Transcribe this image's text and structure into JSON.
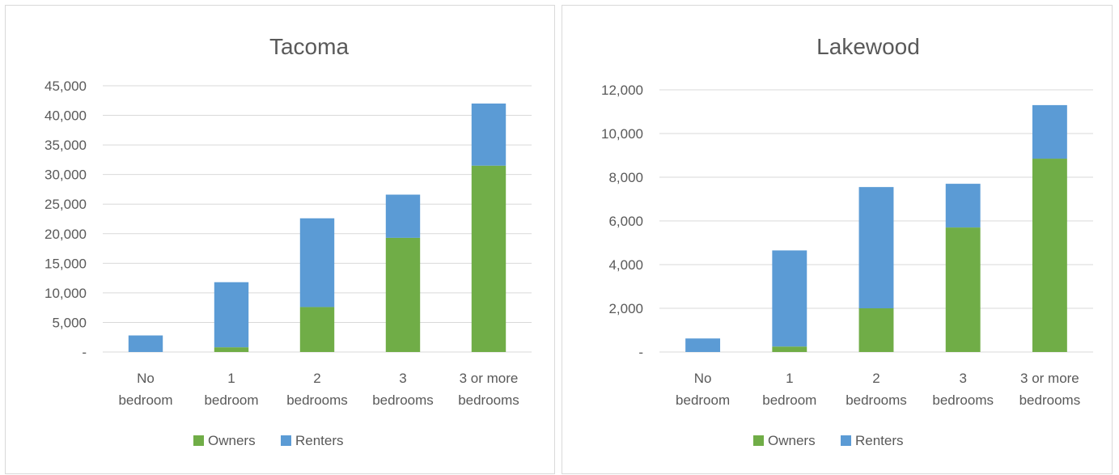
{
  "chart_data": [
    {
      "type": "bar",
      "stacked": true,
      "title": "Tacoma",
      "categories": [
        [
          "No",
          "bedroom"
        ],
        [
          "1",
          "bedroom"
        ],
        [
          "2",
          "bedrooms"
        ],
        [
          "3",
          "bedrooms"
        ],
        [
          "3 or more",
          "bedrooms"
        ]
      ],
      "series": [
        {
          "name": "Owners",
          "color": "#70ad47",
          "values": [
            0,
            800,
            7600,
            19300,
            31500
          ]
        },
        {
          "name": "Renters",
          "color": "#5b9bd5",
          "values": [
            2800,
            11000,
            15000,
            7300,
            10500
          ]
        }
      ],
      "ylim": [
        0,
        45000
      ],
      "yticks": [
        0,
        5000,
        10000,
        15000,
        20000,
        25000,
        30000,
        35000,
        40000,
        45000
      ],
      "ytick_labels": [
        "-",
        "5,000",
        "10,000",
        "15,000",
        "20,000",
        "25,000",
        "30,000",
        "35,000",
        "40,000",
        "45,000"
      ],
      "grid": true,
      "legend": "bottom"
    },
    {
      "type": "bar",
      "stacked": true,
      "title": "Lakewood",
      "categories": [
        [
          "No",
          "bedroom"
        ],
        [
          "1",
          "bedroom"
        ],
        [
          "2",
          "bedrooms"
        ],
        [
          "3",
          "bedrooms"
        ],
        [
          "3 or more",
          "bedrooms"
        ]
      ],
      "series": [
        {
          "name": "Owners",
          "color": "#70ad47",
          "values": [
            0,
            250,
            2000,
            5700,
            8850
          ]
        },
        {
          "name": "Renters",
          "color": "#5b9bd5",
          "values": [
            620,
            4400,
            5550,
            2000,
            2450
          ]
        }
      ],
      "ylim": [
        0,
        12000
      ],
      "yticks": [
        0,
        2000,
        4000,
        6000,
        8000,
        10000,
        12000
      ],
      "ytick_labels": [
        "-",
        "2,000",
        "4,000",
        "6,000",
        "8,000",
        "10,000",
        "12,000"
      ],
      "grid": true,
      "legend": "bottom"
    }
  ]
}
